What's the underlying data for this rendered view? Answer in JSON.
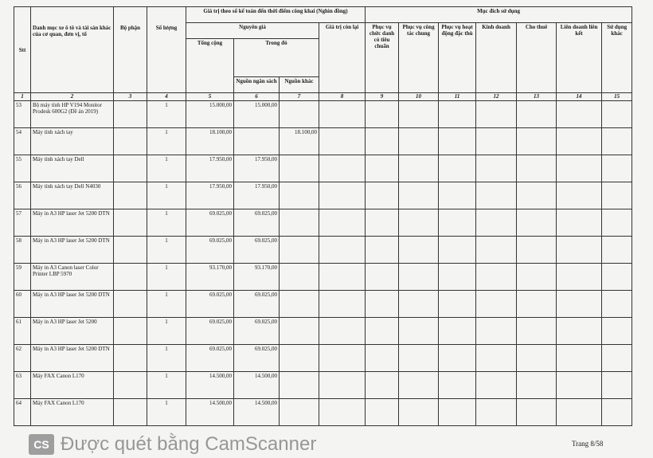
{
  "header": {
    "stt": "Stt",
    "asset_list": "Danh mục xe ô tô và tài sản khác của cơ quan, đơn vị, tổ",
    "department": "Bộ phận",
    "quantity": "Số lượng",
    "value_group": "Giá trị theo sổ kế toán đến thời điểm công khai (Nghìn đồng)",
    "original_price": "Nguyên giá",
    "total": "Tổng cộng",
    "of_which": "Trong đó",
    "budget_source": "Nguồn ngân sách",
    "other_source": "Nguồn khác",
    "remaining_value": "Giá trị còn lại",
    "purpose_group": "Mục đích sử dụng",
    "purposes": [
      "Phục vụ chức danh có tiêu chuẩn",
      "Phục vụ công tác chung",
      "Phục vụ hoạt động đặc thù",
      "Kinh doanh",
      "Cho thuê",
      "Liên doanh liên kết",
      "Sử dụng khác"
    ]
  },
  "column_numbers": [
    "1",
    "2",
    "3",
    "4",
    "5",
    "6",
    "7",
    "8",
    "9",
    "10",
    "11",
    "12",
    "13",
    "14",
    "15"
  ],
  "rows": [
    {
      "stt": "53",
      "name": "Bộ máy tính HP V194 Monitor Prodesk 600G2 (Đề án 2019)",
      "qty": "1",
      "total": "15.000,00",
      "budget": "15.000,00",
      "other": ""
    },
    {
      "stt": "54",
      "name": "Máy tính xách tay",
      "qty": "1",
      "total": "18.100,00",
      "budget": "",
      "other": "18.100,00"
    },
    {
      "stt": "55",
      "name": "Máy tính xách tay Dell",
      "qty": "1",
      "total": "17.950,00",
      "budget": "17.950,00",
      "other": ""
    },
    {
      "stt": "56",
      "name": "Máy tính xách tay Dell N4030",
      "qty": "1",
      "total": "17.950,00",
      "budget": "17.950,00",
      "other": ""
    },
    {
      "stt": "57",
      "name": "Máy in A3 HP laser Jet 5200 DTN",
      "qty": "1",
      "total": "69.025,00",
      "budget": "69.025,00",
      "other": ""
    },
    {
      "stt": "58",
      "name": "Máy in A3 HP laser Jet 5200 DTN",
      "qty": "1",
      "total": "69.025,00",
      "budget": "69.025,00",
      "other": ""
    },
    {
      "stt": "59",
      "name": "Máy in A3 Canon laser Color Printer LBP 5970",
      "qty": "1",
      "total": "93.170,00",
      "budget": "93.170,00",
      "other": ""
    },
    {
      "stt": "60",
      "name": "Máy in A3 HP laser Jet 5200 DTN",
      "qty": "1",
      "total": "69.025,00",
      "budget": "69.025,00",
      "other": ""
    },
    {
      "stt": "61",
      "name": "Máy in A3 HP laser Jet 5200",
      "qty": "1",
      "total": "69.025,00",
      "budget": "69.025,00",
      "other": ""
    },
    {
      "stt": "62",
      "name": "Máy in A3 HP laser Jet 5200 DTN",
      "qty": "1",
      "total": "69.025,00",
      "budget": "69.025,00",
      "other": ""
    },
    {
      "stt": "63",
      "name": "Máy FAX Canon L170",
      "qty": "1",
      "total": "14.500,00",
      "budget": "14.500,00",
      "other": ""
    },
    {
      "stt": "64",
      "name": "Máy FAX Canon L170",
      "qty": "1",
      "total": "14.500,00",
      "budget": "14.500,00",
      "other": ""
    }
  ],
  "footer": {
    "page": "Trang 8/58"
  },
  "watermark": {
    "text": "Được quét bằng CamScanner",
    "logo": "CS"
  }
}
